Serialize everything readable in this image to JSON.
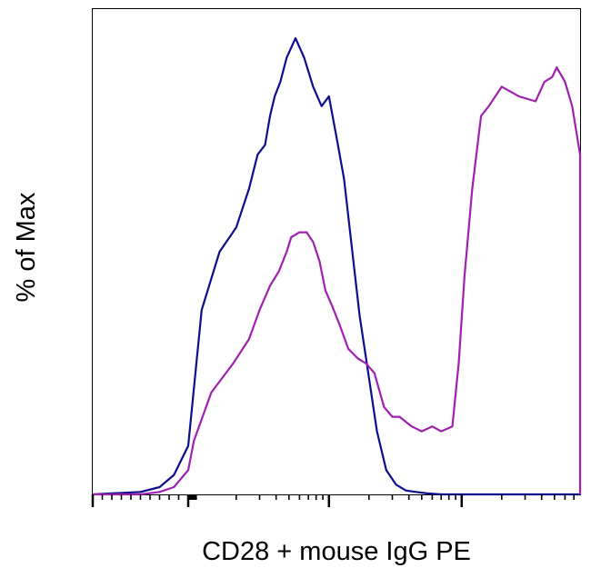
{
  "chart_data": {
    "type": "line",
    "title": "",
    "xlabel": "CD28 + mouse IgG PE",
    "ylabel": "% of Max",
    "x_scale": "log",
    "xlim": [
      -1000,
      1000000
    ],
    "ylim": [
      0,
      100
    ],
    "grid": false,
    "legend": "none",
    "colors": {
      "blue": "#0d0d8f",
      "purple": "#a020b0",
      "axis": "#000000"
    },
    "series": [
      {
        "color": "#0d0d8f",
        "x": [
          -1000,
          -500,
          -300,
          -150,
          0,
          60,
          110,
          150,
          200,
          250,
          290,
          330,
          360,
          390,
          430,
          480,
          560,
          650,
          760,
          880,
          1000,
          1150,
          1300,
          1500,
          1700,
          2000,
          2300,
          2700,
          3200,
          3800,
          4500,
          5500,
          7000,
          9000,
          12000,
          16000,
          100000,
          1000000
        ],
        "y": [
          0,
          0.5,
          1.5,
          4,
          10,
          20,
          38,
          50,
          55,
          63,
          70,
          72,
          78,
          82,
          85,
          90,
          94,
          90,
          84,
          80,
          82,
          73,
          65,
          50,
          37,
          24,
          13,
          5,
          2,
          0.8,
          0.5,
          0.2,
          0,
          0,
          0,
          0,
          0,
          0
        ]
      },
      {
        "color": "#a020b0",
        "x": [
          -1000,
          -500,
          -300,
          -150,
          0,
          70,
          130,
          190,
          250,
          300,
          360,
          420,
          480,
          520,
          600,
          680,
          760,
          850,
          940,
          1050,
          1200,
          1400,
          1650,
          1900,
          2200,
          2600,
          3000,
          3400,
          4200,
          5000,
          6000,
          7000,
          8500,
          9500,
          10500,
          12000,
          14000,
          16000,
          20000,
          27000,
          36000,
          42000,
          48000,
          52000,
          60000,
          68000,
          80000,
          100000,
          130000,
          160000,
          200000,
          1000000
        ],
        "y": [
          0,
          0,
          0.5,
          1.5,
          5,
          11,
          21,
          27,
          32,
          38,
          43,
          46,
          50,
          53,
          54,
          54,
          52,
          48,
          42,
          39,
          35,
          30,
          28,
          27,
          25,
          18,
          16,
          16,
          14,
          13,
          14,
          13,
          14,
          27,
          45,
          63,
          78,
          80,
          84,
          82,
          81,
          85,
          86,
          88,
          85,
          80,
          70,
          50,
          28,
          10,
          1,
          0
        ]
      }
    ]
  }
}
